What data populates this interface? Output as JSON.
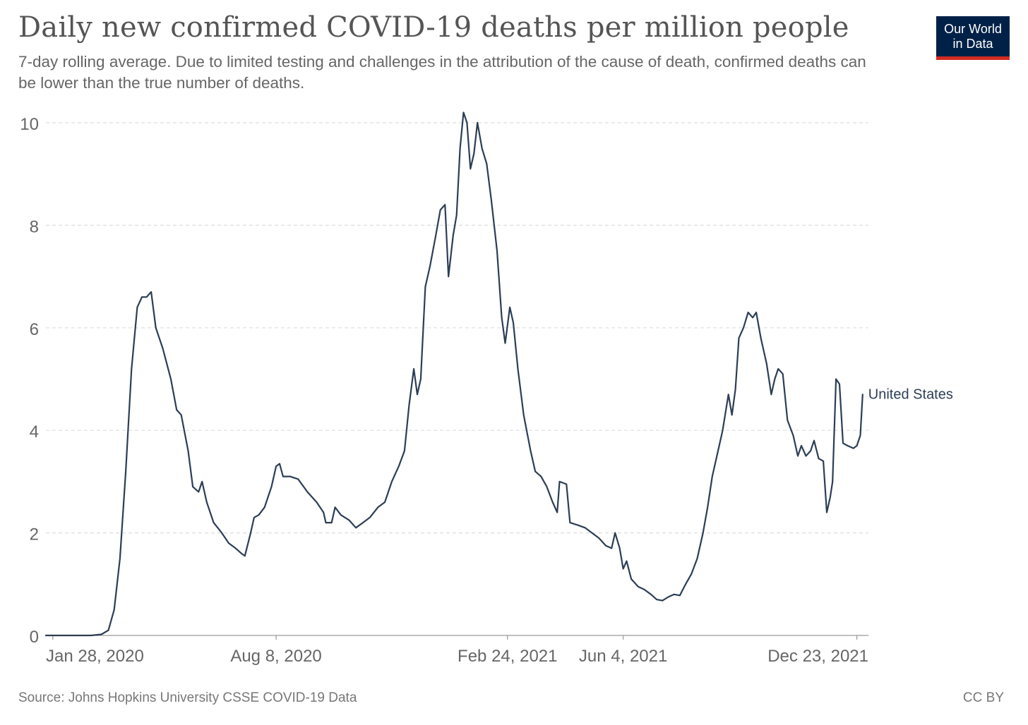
{
  "header": {
    "title": "Daily new confirmed COVID-19 deaths per million people",
    "subtitle": "7-day rolling average. Due to limited testing and challenges in the attribution of the cause of death, confirmed deaths can be lower than the true number of deaths.",
    "logo_line1": "Our World",
    "logo_line2": "in Data"
  },
  "footer": {
    "source": "Source: Johns Hopkins University CSSE COVID-19 Data",
    "license": "CC BY"
  },
  "colors": {
    "line": "#2c3e55",
    "grid": "#dddddd",
    "axis_text": "#666666",
    "logo_bg": "#002147",
    "logo_accent": "#d42b21"
  },
  "chart_data": {
    "type": "line",
    "title": "Daily new confirmed COVID-19 deaths per million people",
    "xlabel": "",
    "ylabel": "",
    "ylim": [
      0,
      10
    ],
    "yticks": [
      0,
      2,
      4,
      6,
      8,
      10
    ],
    "x_range": [
      "2020-01-22",
      "2022-01-02"
    ],
    "x_ticks": [
      {
        "date": "2020-01-28",
        "label": "Jan 28, 2020"
      },
      {
        "date": "2020-08-08",
        "label": "Aug 8, 2020"
      },
      {
        "date": "2021-02-24",
        "label": "Feb 24, 2021"
      },
      {
        "date": "2021-06-04",
        "label": "Jun 4, 2021"
      },
      {
        "date": "2021-12-23",
        "label": "Dec 23, 2021"
      }
    ],
    "grid": true,
    "series": [
      {
        "name": "United States",
        "points": [
          [
            "2020-01-22",
            0
          ],
          [
            "2020-03-01",
            0
          ],
          [
            "2020-03-10",
            0.02
          ],
          [
            "2020-03-16",
            0.1
          ],
          [
            "2020-03-21",
            0.5
          ],
          [
            "2020-03-26",
            1.5
          ],
          [
            "2020-03-31",
            3.2
          ],
          [
            "2020-04-05",
            5.2
          ],
          [
            "2020-04-10",
            6.4
          ],
          [
            "2020-04-14",
            6.6
          ],
          [
            "2020-04-18",
            6.6
          ],
          [
            "2020-04-22",
            6.7
          ],
          [
            "2020-04-26",
            6.0
          ],
          [
            "2020-05-02",
            5.6
          ],
          [
            "2020-05-09",
            5.0
          ],
          [
            "2020-05-14",
            4.4
          ],
          [
            "2020-05-18",
            4.3
          ],
          [
            "2020-05-24",
            3.6
          ],
          [
            "2020-05-28",
            2.9
          ],
          [
            "2020-06-02",
            2.8
          ],
          [
            "2020-06-05",
            3.0
          ],
          [
            "2020-06-09",
            2.6
          ],
          [
            "2020-06-15",
            2.2
          ],
          [
            "2020-06-22",
            2.0
          ],
          [
            "2020-06-28",
            1.8
          ],
          [
            "2020-07-04",
            1.7
          ],
          [
            "2020-07-09",
            1.6
          ],
          [
            "2020-07-12",
            1.55
          ],
          [
            "2020-07-17",
            2.0
          ],
          [
            "2020-07-20",
            2.3
          ],
          [
            "2020-07-24",
            2.35
          ],
          [
            "2020-07-29",
            2.5
          ],
          [
            "2020-08-04",
            2.9
          ],
          [
            "2020-08-08",
            3.3
          ],
          [
            "2020-08-11",
            3.35
          ],
          [
            "2020-08-14",
            3.1
          ],
          [
            "2020-08-20",
            3.1
          ],
          [
            "2020-08-27",
            3.05
          ],
          [
            "2020-09-04",
            2.8
          ],
          [
            "2020-09-12",
            2.6
          ],
          [
            "2020-09-18",
            2.4
          ],
          [
            "2020-09-20",
            2.2
          ],
          [
            "2020-09-25",
            2.2
          ],
          [
            "2020-09-28",
            2.5
          ],
          [
            "2020-10-03",
            2.35
          ],
          [
            "2020-10-10",
            2.25
          ],
          [
            "2020-10-16",
            2.1
          ],
          [
            "2020-10-22",
            2.2
          ],
          [
            "2020-10-28",
            2.3
          ],
          [
            "2020-11-04",
            2.5
          ],
          [
            "2020-11-10",
            2.6
          ],
          [
            "2020-11-16",
            3.0
          ],
          [
            "2020-11-22",
            3.3
          ],
          [
            "2020-11-27",
            3.6
          ],
          [
            "2020-12-01",
            4.5
          ],
          [
            "2020-12-05",
            5.2
          ],
          [
            "2020-12-08",
            4.7
          ],
          [
            "2020-12-11",
            5.0
          ],
          [
            "2020-12-15",
            6.8
          ],
          [
            "2020-12-19",
            7.2
          ],
          [
            "2020-12-24",
            7.8
          ],
          [
            "2020-12-28",
            8.3
          ],
          [
            "2021-01-01",
            8.4
          ],
          [
            "2021-01-04",
            7.0
          ],
          [
            "2021-01-08",
            7.8
          ],
          [
            "2021-01-11",
            8.2
          ],
          [
            "2021-01-14",
            9.5
          ],
          [
            "2021-01-17",
            10.2
          ],
          [
            "2021-01-20",
            10.0
          ],
          [
            "2021-01-23",
            9.1
          ],
          [
            "2021-01-26",
            9.4
          ],
          [
            "2021-01-29",
            10.0
          ],
          [
            "2021-02-02",
            9.5
          ],
          [
            "2021-02-06",
            9.2
          ],
          [
            "2021-02-10",
            8.5
          ],
          [
            "2021-02-15",
            7.5
          ],
          [
            "2021-02-19",
            6.2
          ],
          [
            "2021-02-22",
            5.7
          ],
          [
            "2021-02-26",
            6.4
          ],
          [
            "2021-03-01",
            6.1
          ],
          [
            "2021-03-05",
            5.2
          ],
          [
            "2021-03-10",
            4.3
          ],
          [
            "2021-03-16",
            3.6
          ],
          [
            "2021-03-20",
            3.2
          ],
          [
            "2021-03-25",
            3.1
          ],
          [
            "2021-03-30",
            2.9
          ],
          [
            "2021-04-04",
            2.6
          ],
          [
            "2021-04-08",
            2.4
          ],
          [
            "2021-04-10",
            3.0
          ],
          [
            "2021-04-16",
            2.95
          ],
          [
            "2021-04-19",
            2.2
          ],
          [
            "2021-04-26",
            2.15
          ],
          [
            "2021-05-02",
            2.1
          ],
          [
            "2021-05-08",
            2.0
          ],
          [
            "2021-05-14",
            1.9
          ],
          [
            "2021-05-20",
            1.75
          ],
          [
            "2021-05-25",
            1.7
          ],
          [
            "2021-05-28",
            2.0
          ],
          [
            "2021-06-01",
            1.7
          ],
          [
            "2021-06-04",
            1.3
          ],
          [
            "2021-06-07",
            1.45
          ],
          [
            "2021-06-11",
            1.1
          ],
          [
            "2021-06-17",
            0.95
          ],
          [
            "2021-06-22",
            0.9
          ],
          [
            "2021-06-28",
            0.8
          ],
          [
            "2021-07-03",
            0.7
          ],
          [
            "2021-07-08",
            0.68
          ],
          [
            "2021-07-13",
            0.75
          ],
          [
            "2021-07-18",
            0.8
          ],
          [
            "2021-07-23",
            0.78
          ],
          [
            "2021-07-28",
            1.0
          ],
          [
            "2021-08-02",
            1.2
          ],
          [
            "2021-08-07",
            1.5
          ],
          [
            "2021-08-12",
            2.0
          ],
          [
            "2021-08-16",
            2.5
          ],
          [
            "2021-08-20",
            3.1
          ],
          [
            "2021-08-25",
            3.6
          ],
          [
            "2021-08-29",
            4.0
          ],
          [
            "2021-09-03",
            4.7
          ],
          [
            "2021-09-06",
            4.3
          ],
          [
            "2021-09-09",
            4.8
          ],
          [
            "2021-09-12",
            5.8
          ],
          [
            "2021-09-16",
            6.0
          ],
          [
            "2021-09-20",
            6.3
          ],
          [
            "2021-09-24",
            6.2
          ],
          [
            "2021-09-27",
            6.3
          ],
          [
            "2021-10-01",
            5.8
          ],
          [
            "2021-10-06",
            5.3
          ],
          [
            "2021-10-10",
            4.7
          ],
          [
            "2021-10-13",
            5.0
          ],
          [
            "2021-10-16",
            5.2
          ],
          [
            "2021-10-20",
            5.1
          ],
          [
            "2021-10-24",
            4.2
          ],
          [
            "2021-10-29",
            3.9
          ],
          [
            "2021-11-02",
            3.5
          ],
          [
            "2021-11-05",
            3.7
          ],
          [
            "2021-11-09",
            3.5
          ],
          [
            "2021-11-13",
            3.6
          ],
          [
            "2021-11-16",
            3.8
          ],
          [
            "2021-11-20",
            3.45
          ],
          [
            "2021-11-24",
            3.4
          ],
          [
            "2021-11-27",
            2.4
          ],
          [
            "2021-11-30",
            2.7
          ],
          [
            "2021-12-02",
            3.0
          ],
          [
            "2021-12-05",
            5.0
          ],
          [
            "2021-12-08",
            4.9
          ],
          [
            "2021-12-11",
            3.75
          ],
          [
            "2021-12-15",
            3.7
          ],
          [
            "2021-12-20",
            3.65
          ],
          [
            "2021-12-23",
            3.7
          ],
          [
            "2021-12-26",
            3.9
          ],
          [
            "2021-12-28",
            4.7
          ]
        ]
      }
    ]
  }
}
